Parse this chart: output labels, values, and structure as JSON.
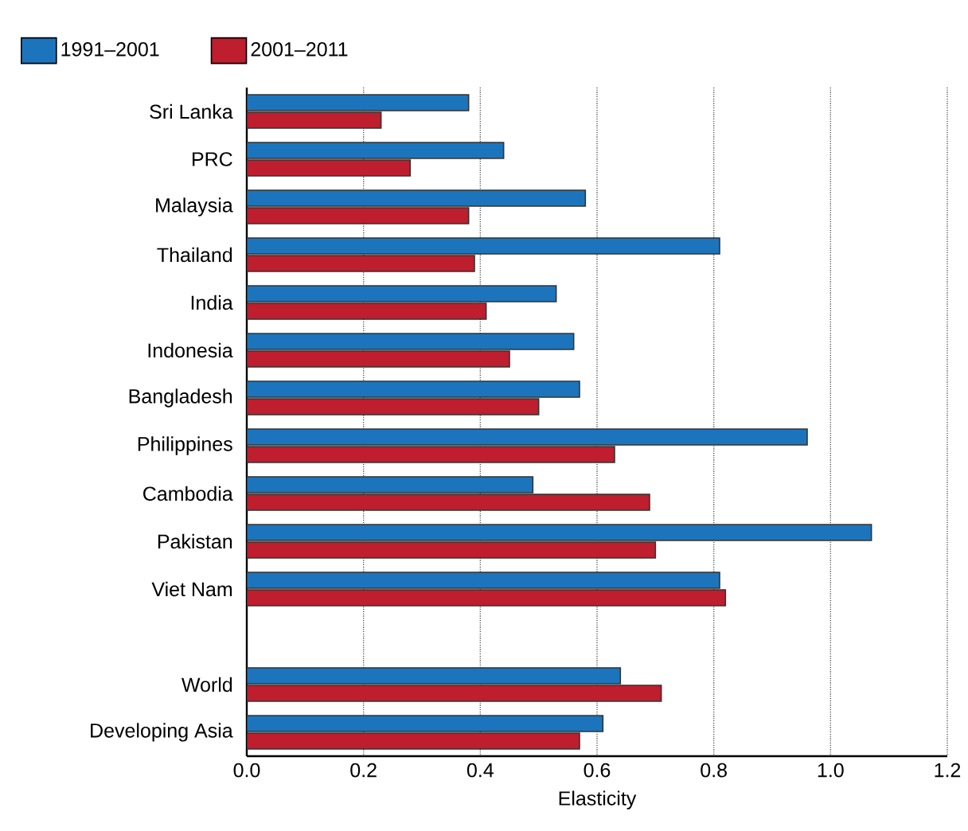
{
  "chart_data": {
    "type": "bar",
    "orientation": "horizontal",
    "xlabel": "Elasticity",
    "categories": [
      "Sri Lanka",
      "PRC",
      "Malaysia",
      "Thailand",
      "India",
      "Indonesia",
      "Bangladesh",
      "Philippines",
      "Cambodia",
      "Pakistan",
      "Viet Nam",
      null,
      "World",
      "Developing Asia"
    ],
    "series": [
      {
        "name": "1991–2001",
        "color": "#1c75bc",
        "values": [
          0.38,
          0.44,
          0.58,
          0.81,
          0.53,
          0.56,
          0.57,
          0.96,
          0.49,
          1.07,
          0.81,
          null,
          0.64,
          0.61
        ]
      },
      {
        "name": "2001–2011",
        "color": "#be1e2d",
        "values": [
          0.23,
          0.28,
          0.38,
          0.39,
          0.41,
          0.45,
          0.5,
          0.63,
          0.69,
          0.7,
          0.82,
          null,
          0.71,
          0.57
        ]
      }
    ],
    "xlim": [
      0,
      1.2
    ],
    "xticks": [
      {
        "value": 0,
        "label": "0.0"
      },
      {
        "value": 0.2,
        "label": "0.2"
      },
      {
        "value": 0.4,
        "label": "0.4"
      },
      {
        "value": 0.6,
        "label": "0.6"
      },
      {
        "value": 0.8,
        "label": "0.8"
      },
      {
        "value": 1.0,
        "label": "1.0"
      },
      {
        "value": 1.2,
        "label": "1.2"
      }
    ],
    "grid": "x",
    "legend": "top left"
  }
}
